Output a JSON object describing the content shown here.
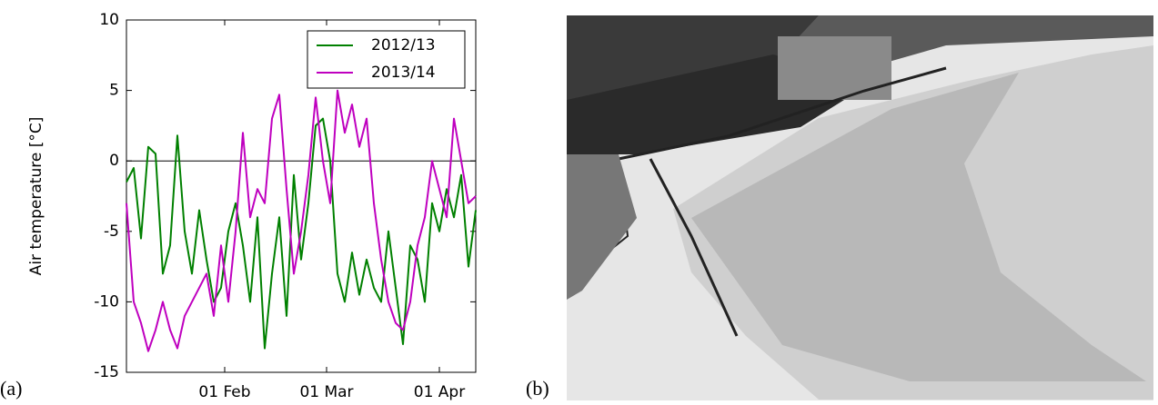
{
  "chart_data": {
    "type": "line",
    "ylabel": "Air temperature [°C]",
    "x": [
      "05 Jan",
      "07 Jan",
      "09 Jan",
      "11 Jan",
      "13 Jan",
      "15 Jan",
      "17 Jan",
      "19 Jan",
      "21 Jan",
      "23 Jan",
      "25 Jan",
      "27 Jan",
      "29 Jan",
      "31 Jan",
      "02 Feb",
      "04 Feb",
      "06 Feb",
      "08 Feb",
      "10 Feb",
      "12 Feb",
      "14 Feb",
      "16 Feb",
      "18 Feb",
      "20 Feb",
      "22 Feb",
      "24 Feb",
      "26 Feb",
      "28 Feb",
      "02 Mar",
      "04 Mar",
      "06 Mar",
      "08 Mar",
      "10 Mar",
      "12 Mar",
      "14 Mar",
      "16 Mar",
      "18 Mar",
      "20 Mar",
      "22 Mar",
      "24 Mar",
      "26 Mar",
      "28 Mar",
      "30 Mar",
      "01 Apr",
      "03 Apr",
      "05 Apr",
      "07 Apr",
      "09 Apr",
      "11 Apr"
    ],
    "series": [
      {
        "name": "2012/13",
        "color": "#008000",
        "values": [
          -1.5,
          -0.5,
          -5.5,
          1,
          0.5,
          -8,
          -6,
          1.8,
          -5,
          -8,
          -3.5,
          -7,
          -10,
          -9,
          -5,
          -3,
          -6,
          -10,
          -4,
          -13.3,
          -8,
          -4,
          -11,
          -1,
          -7,
          -3,
          2.5,
          3,
          0,
          -8,
          -10,
          -6.5,
          -9.5,
          -7,
          -9,
          -10,
          -5,
          -9,
          -13,
          -6,
          -7,
          -10,
          -3,
          -5,
          -2,
          -4,
          -1,
          -7.5,
          -3.5
        ]
      },
      {
        "name": "2013/14",
        "color": "#bf00bf",
        "values": [
          -3,
          -10,
          -11.5,
          -13.5,
          -12,
          -10,
          -12,
          -13.3,
          -11,
          -10,
          -9,
          -8,
          -11,
          -6,
          -10,
          -5,
          2,
          -4,
          -2,
          -3,
          3,
          4.7,
          -2,
          -8,
          -5,
          -1,
          4.5,
          0,
          -3,
          5,
          2,
          4,
          1,
          3,
          -3,
          -7,
          -10,
          -11.5,
          -12,
          -10,
          -6,
          -4,
          0,
          -2,
          -4,
          3,
          0,
          -3,
          -2.5
        ]
      }
    ],
    "xlim": [
      "05 Jan",
      "11 Apr"
    ],
    "xticks": [
      "01 Feb",
      "01 Mar",
      "01 Apr"
    ],
    "ylim": [
      -15,
      10
    ],
    "yticks": [
      -15,
      -10,
      -5,
      0,
      5,
      10
    ],
    "zero_line": true,
    "legend": "upper right"
  },
  "panel_labels": [
    "(a)",
    "(b)"
  ]
}
